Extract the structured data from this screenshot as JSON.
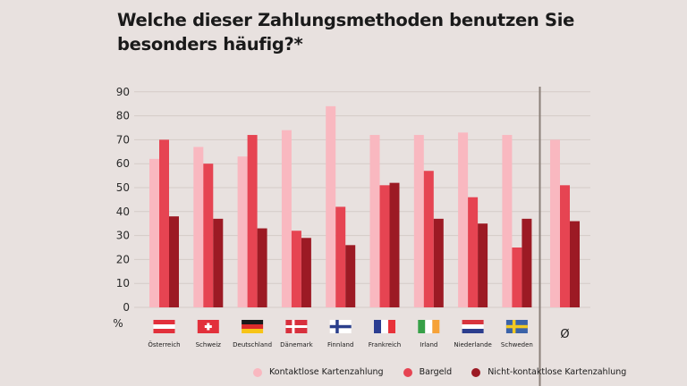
{
  "title_line1": "Welche dieser Zahlungsmethoden benutzen Sie",
  "title_line2": "besonders häufig?*",
  "chart_data": {
    "type": "bar",
    "title": "Welche dieser Zahlungsmethoden benutzen Sie besonders häufig?*",
    "xlabel": "",
    "ylabel": "%",
    "ylim": [
      0,
      90
    ],
    "yticks": [
      0,
      10,
      20,
      30,
      40,
      50,
      60,
      70,
      80,
      90
    ],
    "grid": true,
    "legend_position": "bottom",
    "categories": [
      "Österreich",
      "Schweiz",
      "Deutschland",
      "Dänemark",
      "Finnland",
      "Frankreich",
      "Irland",
      "Niederlande",
      "Schweden",
      "Ø"
    ],
    "flags": [
      "austria-flag",
      "switzerland-flag",
      "germany-flag",
      "denmark-flag",
      "finland-flag",
      "france-flag",
      "ireland-flag",
      "netherlands-flag",
      "sweden-flag",
      ""
    ],
    "series": [
      {
        "name": "Kontaktlose Kartenzahlung",
        "color": "#f9b8c0",
        "values": [
          62,
          67,
          63,
          74,
          84,
          72,
          72,
          73,
          72,
          70
        ]
      },
      {
        "name": "Bargeld",
        "color": "#e64452",
        "values": [
          70,
          60,
          72,
          32,
          42,
          51,
          57,
          46,
          25,
          51
        ]
      },
      {
        "name": "Nicht-kontaktlose Kartenzahlung",
        "color": "#9c1a24",
        "values": [
          38,
          37,
          33,
          29,
          26,
          52,
          37,
          35,
          37,
          36
        ]
      }
    ]
  }
}
